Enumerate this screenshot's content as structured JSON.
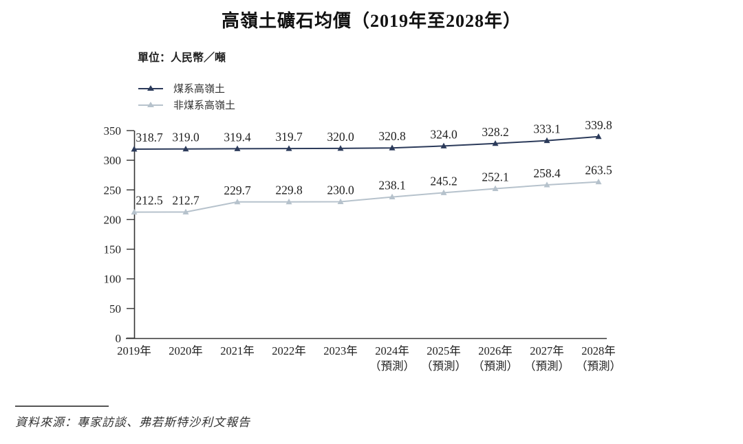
{
  "title": "高嶺土礦石均價（2019年至2028年）",
  "unit_label": "單位：人民幣／噸",
  "source": "資料來源：專家訪談、弗若斯特沙利文報告",
  "colors": {
    "coal_series": "#2b3a5a",
    "non_coal_series": "#b6c2cc",
    "axis": "#333333",
    "data_label": "#1f1f1f",
    "tick_label": "#222222"
  },
  "chart_data": {
    "type": "line",
    "title": "高嶺土礦石均價（2019年至2028年）",
    "ylabel": "人民幣／噸",
    "xlabel": "",
    "categories": [
      "2019年",
      "2020年",
      "2021年",
      "2022年",
      "2023年",
      "2024年",
      "2025年",
      "2026年",
      "2027年",
      "2028年"
    ],
    "forecast_suffix": "（預測）",
    "forecast_from_index": 5,
    "series": [
      {
        "name": "煤系高嶺土",
        "color_key": "coal_series",
        "values": [
          318.7,
          319.0,
          319.4,
          319.7,
          320.0,
          320.8,
          324.0,
          328.2,
          333.1,
          339.8
        ]
      },
      {
        "name": "非煤系高嶺土",
        "color_key": "non_coal_series",
        "values": [
          212.5,
          212.7,
          229.7,
          229.8,
          230.0,
          238.1,
          245.2,
          252.1,
          258.4,
          263.5
        ]
      }
    ],
    "ylim": [
      0,
      350
    ],
    "ytick_step": 50,
    "yticks": [
      0,
      50,
      100,
      150,
      200,
      250,
      300,
      350
    ],
    "legend_position": "top-left",
    "grid": false
  }
}
